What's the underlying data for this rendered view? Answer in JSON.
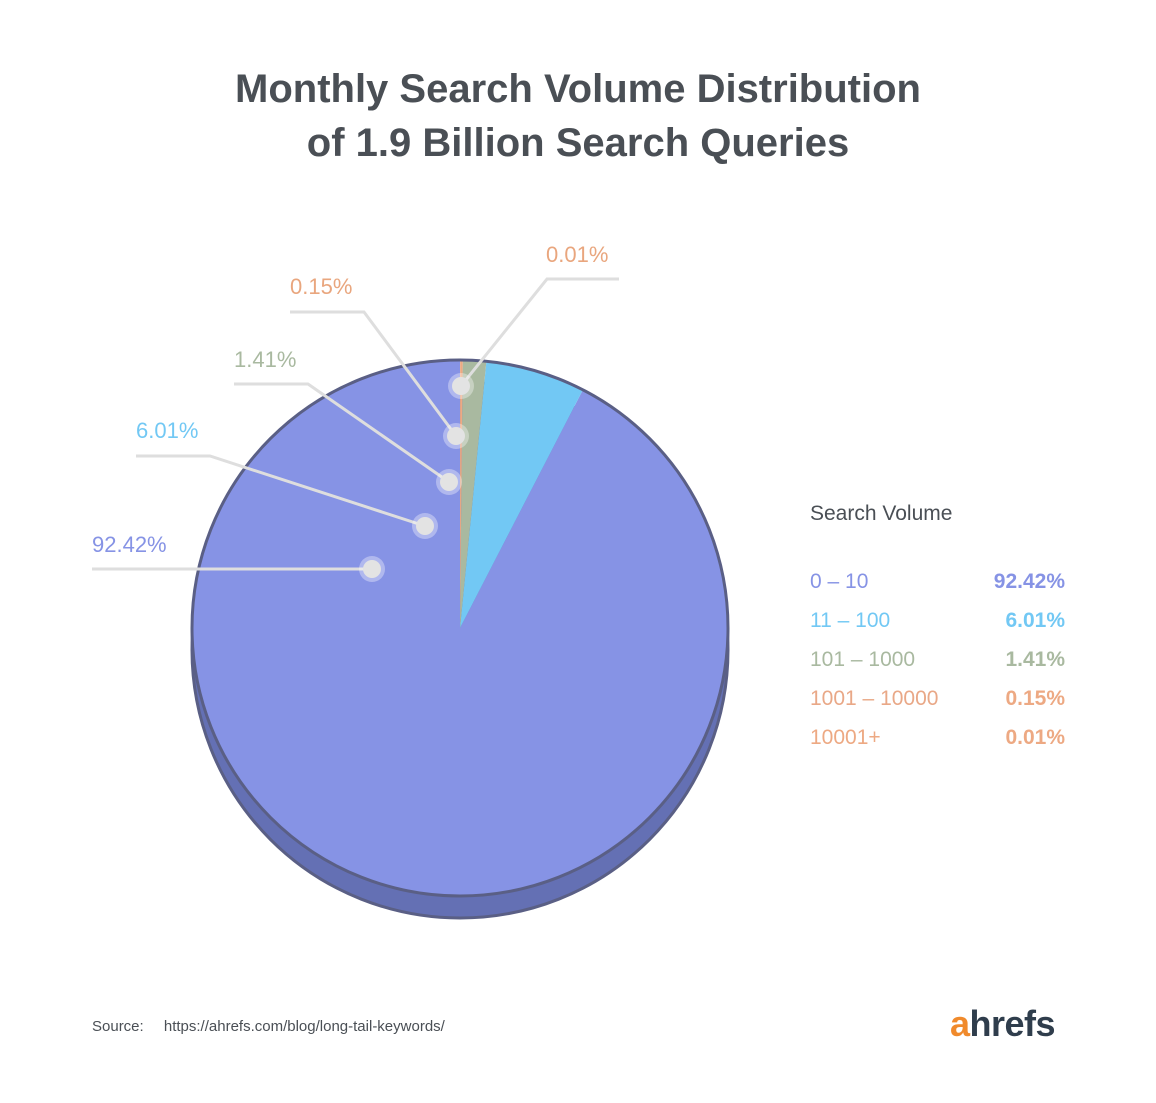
{
  "title_line1": "Monthly Search Volume Distribution",
  "title_line2": "of 1.9 Billion Search Queries",
  "chart_data": {
    "type": "pie",
    "title": "Monthly Search Volume Distribution of 1.9 Billion Search Queries",
    "legend_title": "Search Volume",
    "legend_position": "right",
    "slices": [
      {
        "name": "0 – 10",
        "value": 92.42,
        "label": "92.42%",
        "color": "#8693e5"
      },
      {
        "name": "11 – 100",
        "value": 6.01,
        "label": "6.01%",
        "color": "#72c8f4"
      },
      {
        "name": "101 – 1000",
        "value": 1.41,
        "label": "1.41%",
        "color": "#a9b9a0"
      },
      {
        "name": "1001 – 10000",
        "value": 0.15,
        "label": "0.15%",
        "color": "#eda983"
      },
      {
        "name": "10001+",
        "value": 0.01,
        "label": "0.01%",
        "color": "#eda983"
      }
    ]
  },
  "source_label": "Source:",
  "source_url": "https://ahrefs.com/blog/long-tail-keywords/",
  "brand": {
    "first": "a",
    "rest": "hrefs",
    "accent": "#f08a2c",
    "dark": "#2f3d4c"
  }
}
